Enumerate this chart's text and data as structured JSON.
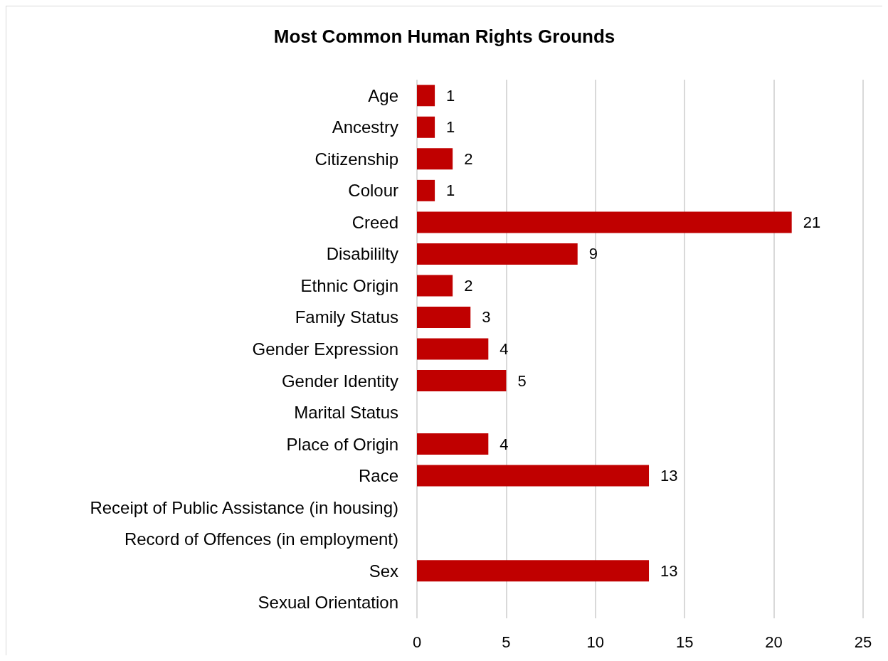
{
  "chart_data": {
    "type": "bar",
    "orientation": "horizontal",
    "title": "Most Common Human Rights Grounds",
    "categories": [
      "Age",
      "Ancestry",
      "Citizenship",
      "Colour",
      "Creed",
      "Disabililty",
      "Ethnic Origin",
      "Family Status",
      "Gender Expression",
      "Gender Identity",
      "Marital Status",
      "Place of Origin",
      "Race",
      "Receipt of Public Assistance (in housing)",
      "Record of Offences (in employment)",
      "Sex",
      "Sexual Orientation"
    ],
    "values": [
      1,
      1,
      2,
      1,
      21,
      9,
      2,
      3,
      4,
      5,
      null,
      4,
      13,
      null,
      null,
      13,
      null
    ],
    "color": "#c00000",
    "xlim": [
      0,
      25
    ],
    "xticks": [
      0,
      5,
      10,
      15,
      20,
      25
    ],
    "grid": "x",
    "data_labels": true
  }
}
